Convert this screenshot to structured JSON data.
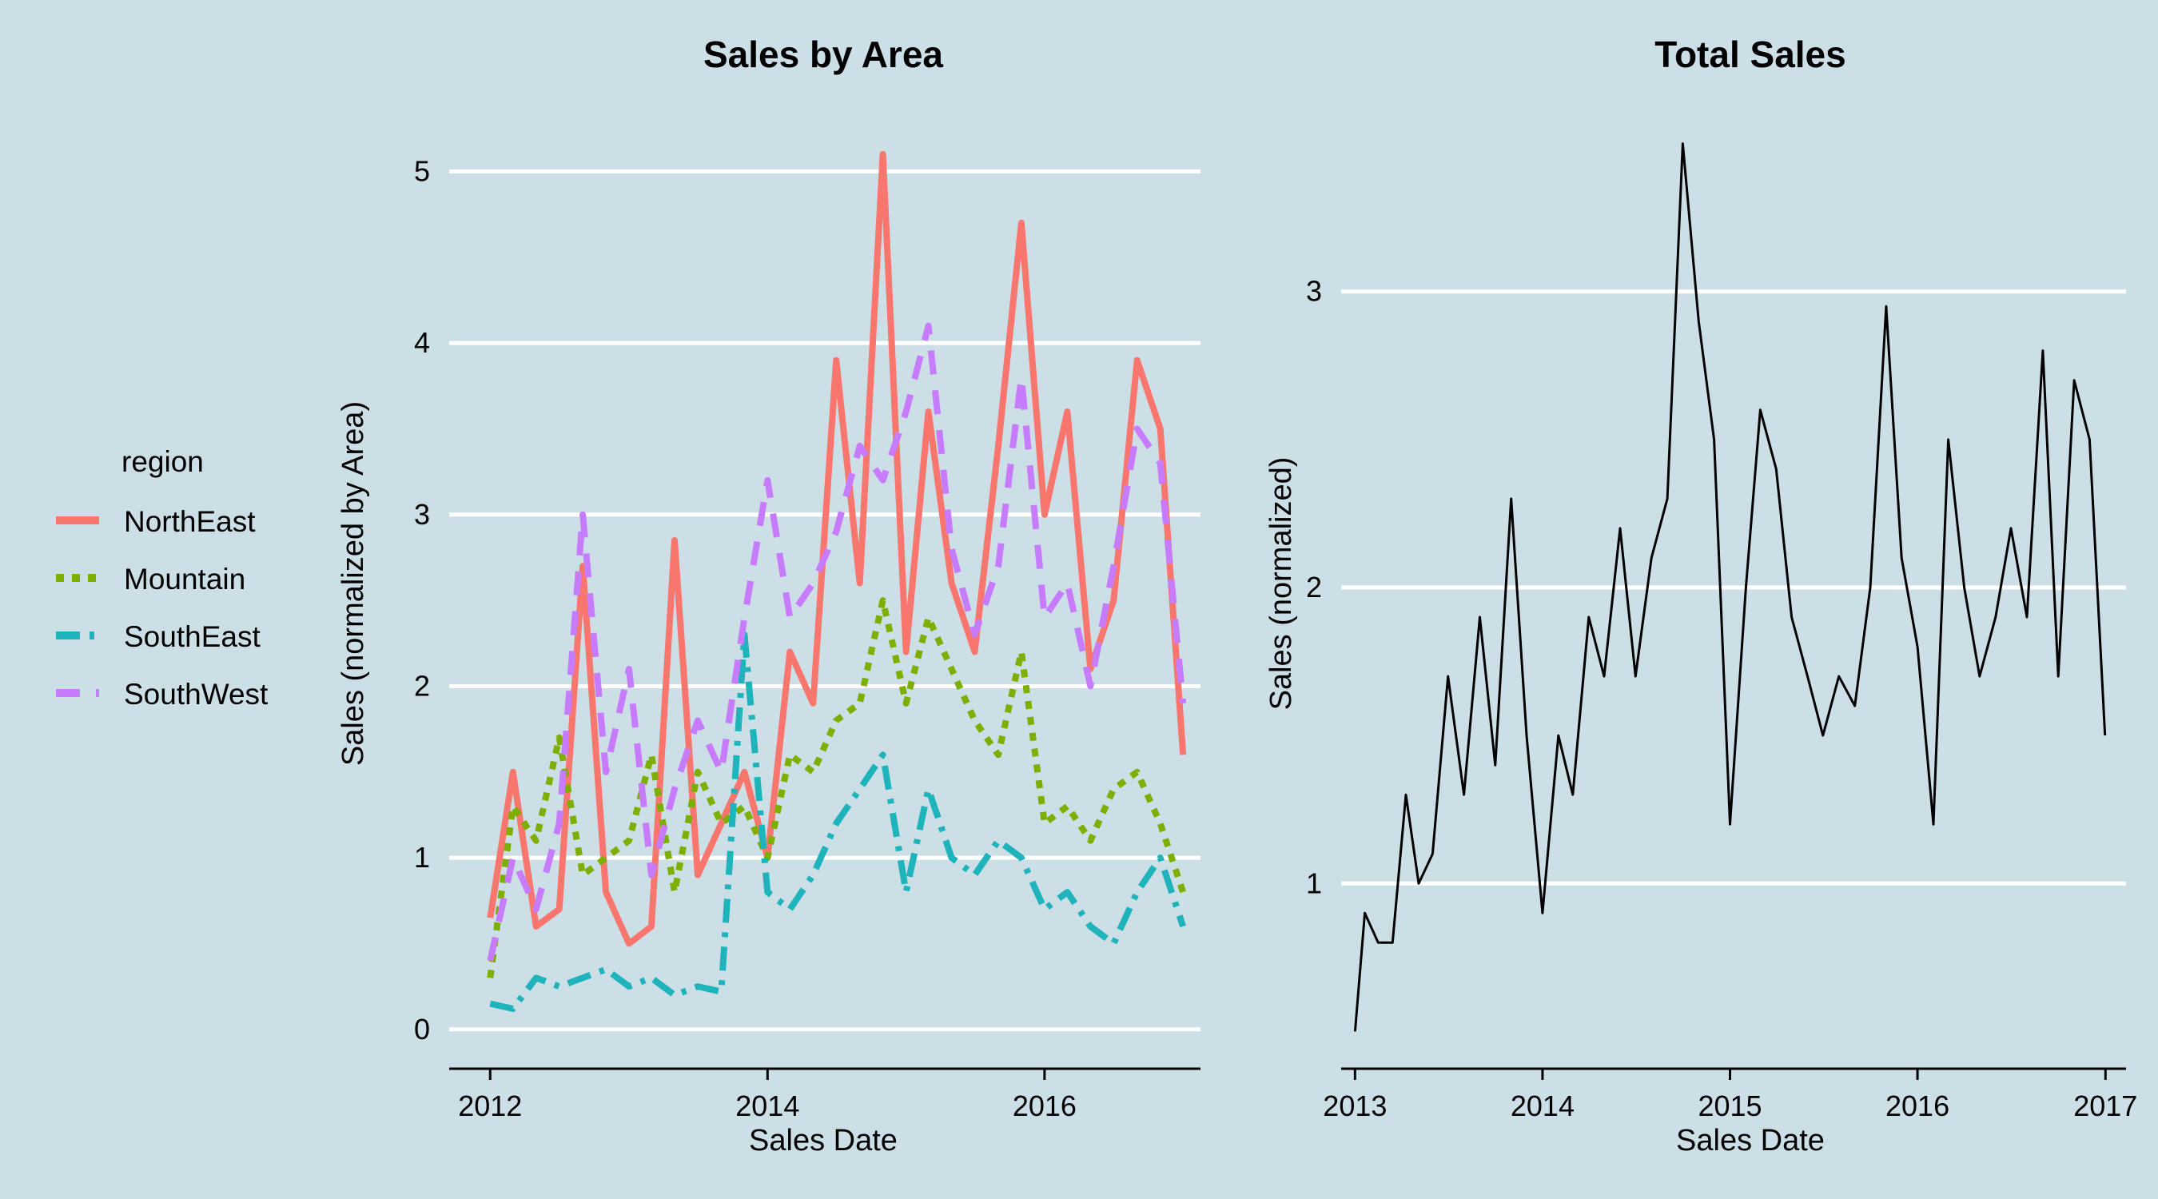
{
  "legend": {
    "title": "region",
    "items": [
      {
        "label": "NorthEast",
        "color": "#f8766d",
        "dash": "solid"
      },
      {
        "label": "Mountain",
        "color": "#7caf00",
        "dash": "dotted"
      },
      {
        "label": "SouthEast",
        "color": "#1fb3bb",
        "dash": "dashdot"
      },
      {
        "label": "SouthWest",
        "color": "#c77cff",
        "dash": "longdash"
      }
    ]
  },
  "chart_data": [
    {
      "type": "line",
      "title": "Sales by Area",
      "xlabel": "Sales Date",
      "ylabel": "Sales (normalized by Area)",
      "xlim": [
        "2011-09-15",
        "2017-02-15"
      ],
      "ylim": [
        -0.15,
        5.3
      ],
      "xticks": [
        {
          "x": "2012-01-01",
          "label": "2012"
        },
        {
          "x": "2014-01-01",
          "label": "2014"
        },
        {
          "x": "2016-01-01",
          "label": "2016"
        }
      ],
      "yticks": [
        0,
        1,
        2,
        3,
        4,
        5
      ],
      "grid": "horizontal",
      "legend": "left",
      "series": [
        {
          "name": "NorthEast",
          "x": [
            "2012-01-01",
            "2012-03-01",
            "2012-05-01",
            "2012-07-01",
            "2012-09-01",
            "2012-11-01",
            "2013-01-01",
            "2013-03-01",
            "2013-05-01",
            "2013-07-01",
            "2013-09-01",
            "2013-11-01",
            "2014-01-01",
            "2014-03-01",
            "2014-05-01",
            "2014-07-01",
            "2014-09-01",
            "2014-11-01",
            "2015-01-01",
            "2015-03-01",
            "2015-05-01",
            "2015-07-01",
            "2015-09-01",
            "2015-11-01",
            "2016-01-01",
            "2016-03-01",
            "2016-05-01",
            "2016-07-01",
            "2016-09-01",
            "2016-11-01",
            "2016-12-31"
          ],
          "y": [
            0.65,
            1.5,
            0.6,
            0.7,
            2.7,
            0.8,
            0.5,
            0.6,
            2.85,
            0.9,
            1.2,
            1.5,
            1.0,
            2.2,
            1.9,
            3.9,
            2.6,
            5.1,
            2.2,
            3.6,
            2.6,
            2.2,
            3.4,
            4.7,
            3.0,
            3.6,
            2.1,
            2.5,
            3.9,
            3.5,
            1.6
          ]
        },
        {
          "name": "Mountain",
          "x": [
            "2012-01-01",
            "2012-03-01",
            "2012-05-01",
            "2012-07-01",
            "2012-09-01",
            "2012-11-01",
            "2013-01-01",
            "2013-03-01",
            "2013-05-01",
            "2013-07-01",
            "2013-09-01",
            "2013-11-01",
            "2014-01-01",
            "2014-03-01",
            "2014-05-01",
            "2014-07-01",
            "2014-09-01",
            "2014-11-01",
            "2015-01-01",
            "2015-03-01",
            "2015-05-01",
            "2015-07-01",
            "2015-09-01",
            "2015-11-01",
            "2016-01-01",
            "2016-03-01",
            "2016-05-01",
            "2016-07-01",
            "2016-09-01",
            "2016-11-01",
            "2016-12-31"
          ],
          "y": [
            0.3,
            1.3,
            1.1,
            1.7,
            0.9,
            1.0,
            1.1,
            1.6,
            0.8,
            1.5,
            1.2,
            1.3,
            1.0,
            1.6,
            1.5,
            1.8,
            1.9,
            2.5,
            1.9,
            2.4,
            2.1,
            1.8,
            1.6,
            2.2,
            1.2,
            1.3,
            1.1,
            1.4,
            1.5,
            1.2,
            0.8
          ]
        },
        {
          "name": "SouthEast",
          "x": [
            "2012-01-01",
            "2012-03-01",
            "2012-05-01",
            "2012-07-01",
            "2012-09-01",
            "2012-11-01",
            "2013-01-01",
            "2013-03-01",
            "2013-05-01",
            "2013-07-01",
            "2013-09-01",
            "2013-11-01",
            "2014-01-01",
            "2014-03-01",
            "2014-05-01",
            "2014-07-01",
            "2014-09-01",
            "2014-11-01",
            "2015-01-01",
            "2015-03-01",
            "2015-05-01",
            "2015-07-01",
            "2015-09-01",
            "2015-11-01",
            "2016-01-01",
            "2016-03-01",
            "2016-05-01",
            "2016-07-01",
            "2016-09-01",
            "2016-11-01",
            "2016-12-31"
          ],
          "y": [
            0.15,
            0.12,
            0.3,
            0.25,
            0.3,
            0.35,
            0.25,
            0.3,
            0.2,
            0.25,
            0.22,
            2.3,
            0.8,
            0.7,
            0.9,
            1.2,
            1.4,
            1.6,
            0.8,
            1.4,
            1.0,
            0.9,
            1.1,
            1.0,
            0.7,
            0.8,
            0.6,
            0.5,
            0.8,
            1.0,
            0.6
          ]
        },
        {
          "name": "SouthWest",
          "x": [
            "2012-01-01",
            "2012-03-01",
            "2012-05-01",
            "2012-07-01",
            "2012-09-01",
            "2012-11-01",
            "2013-01-01",
            "2013-03-01",
            "2013-05-01",
            "2013-07-01",
            "2013-09-01",
            "2013-11-01",
            "2014-01-01",
            "2014-03-01",
            "2014-05-01",
            "2014-07-01",
            "2014-09-01",
            "2014-11-01",
            "2015-01-01",
            "2015-03-01",
            "2015-05-01",
            "2015-07-01",
            "2015-09-01",
            "2015-11-01",
            "2016-01-01",
            "2016-03-01",
            "2016-05-01",
            "2016-07-01",
            "2016-09-01",
            "2016-11-01",
            "2016-12-31"
          ],
          "y": [
            0.4,
            1.0,
            0.7,
            1.2,
            3.0,
            1.5,
            2.1,
            0.9,
            1.4,
            1.8,
            1.5,
            2.4,
            3.2,
            2.4,
            2.6,
            2.9,
            3.4,
            3.2,
            3.6,
            4.1,
            2.8,
            2.3,
            2.7,
            3.8,
            2.4,
            2.6,
            2.0,
            2.7,
            3.5,
            3.3,
            1.9
          ]
        }
      ]
    },
    {
      "type": "line",
      "title": "Total Sales",
      "xlabel": "Sales Date",
      "ylabel": "Sales (normalized)",
      "xlim": [
        "2012-12-05",
        "2017-02-10"
      ],
      "ylim": [
        0.42,
        3.58
      ],
      "xticks": [
        {
          "x": "2013-01-01",
          "label": "2013"
        },
        {
          "x": "2014-01-01",
          "label": "2014"
        },
        {
          "x": "2015-01-01",
          "label": "2015"
        },
        {
          "x": "2016-01-01",
          "label": "2016"
        },
        {
          "x": "2017-01-01",
          "label": "2017"
        }
      ],
      "yticks": [
        1,
        2,
        3
      ],
      "grid": "horizontal",
      "series": [
        {
          "name": "",
          "color": "#000000",
          "x": [
            "2013-01-01",
            "2013-01-20",
            "2013-02-15",
            "2013-03-15",
            "2013-04-10",
            "2013-05-05",
            "2013-06-01",
            "2013-07-01",
            "2013-08-01",
            "2013-09-01",
            "2013-10-01",
            "2013-11-01",
            "2013-12-01",
            "2014-01-01",
            "2014-02-01",
            "2014-03-01",
            "2014-04-01",
            "2014-05-01",
            "2014-06-01",
            "2014-07-01",
            "2014-08-01",
            "2014-09-01",
            "2014-10-01",
            "2014-11-01",
            "2014-12-01",
            "2015-01-01",
            "2015-02-01",
            "2015-03-01",
            "2015-04-01",
            "2015-05-01",
            "2015-06-01",
            "2015-07-01",
            "2015-08-01",
            "2015-09-01",
            "2015-10-01",
            "2015-11-01",
            "2015-12-01",
            "2016-01-01",
            "2016-02-01",
            "2016-03-01",
            "2016-04-01",
            "2016-05-01",
            "2016-06-01",
            "2016-07-01",
            "2016-08-01",
            "2016-09-01",
            "2016-10-01",
            "2016-11-01",
            "2016-12-01",
            "2016-12-31"
          ],
          "y": [
            0.5,
            0.9,
            0.8,
            0.8,
            1.3,
            1.0,
            1.1,
            1.7,
            1.3,
            1.9,
            1.4,
            2.3,
            1.5,
            0.9,
            1.5,
            1.3,
            1.9,
            1.7,
            2.2,
            1.7,
            2.1,
            2.3,
            3.5,
            2.9,
            2.5,
            1.2,
            2.0,
            2.6,
            2.4,
            1.9,
            1.7,
            1.5,
            1.7,
            1.6,
            2.0,
            2.95,
            2.1,
            1.8,
            1.2,
            2.5,
            2.0,
            1.7,
            1.9,
            2.2,
            1.9,
            2.8,
            1.7,
            2.7,
            2.5,
            1.5
          ]
        }
      ]
    }
  ]
}
